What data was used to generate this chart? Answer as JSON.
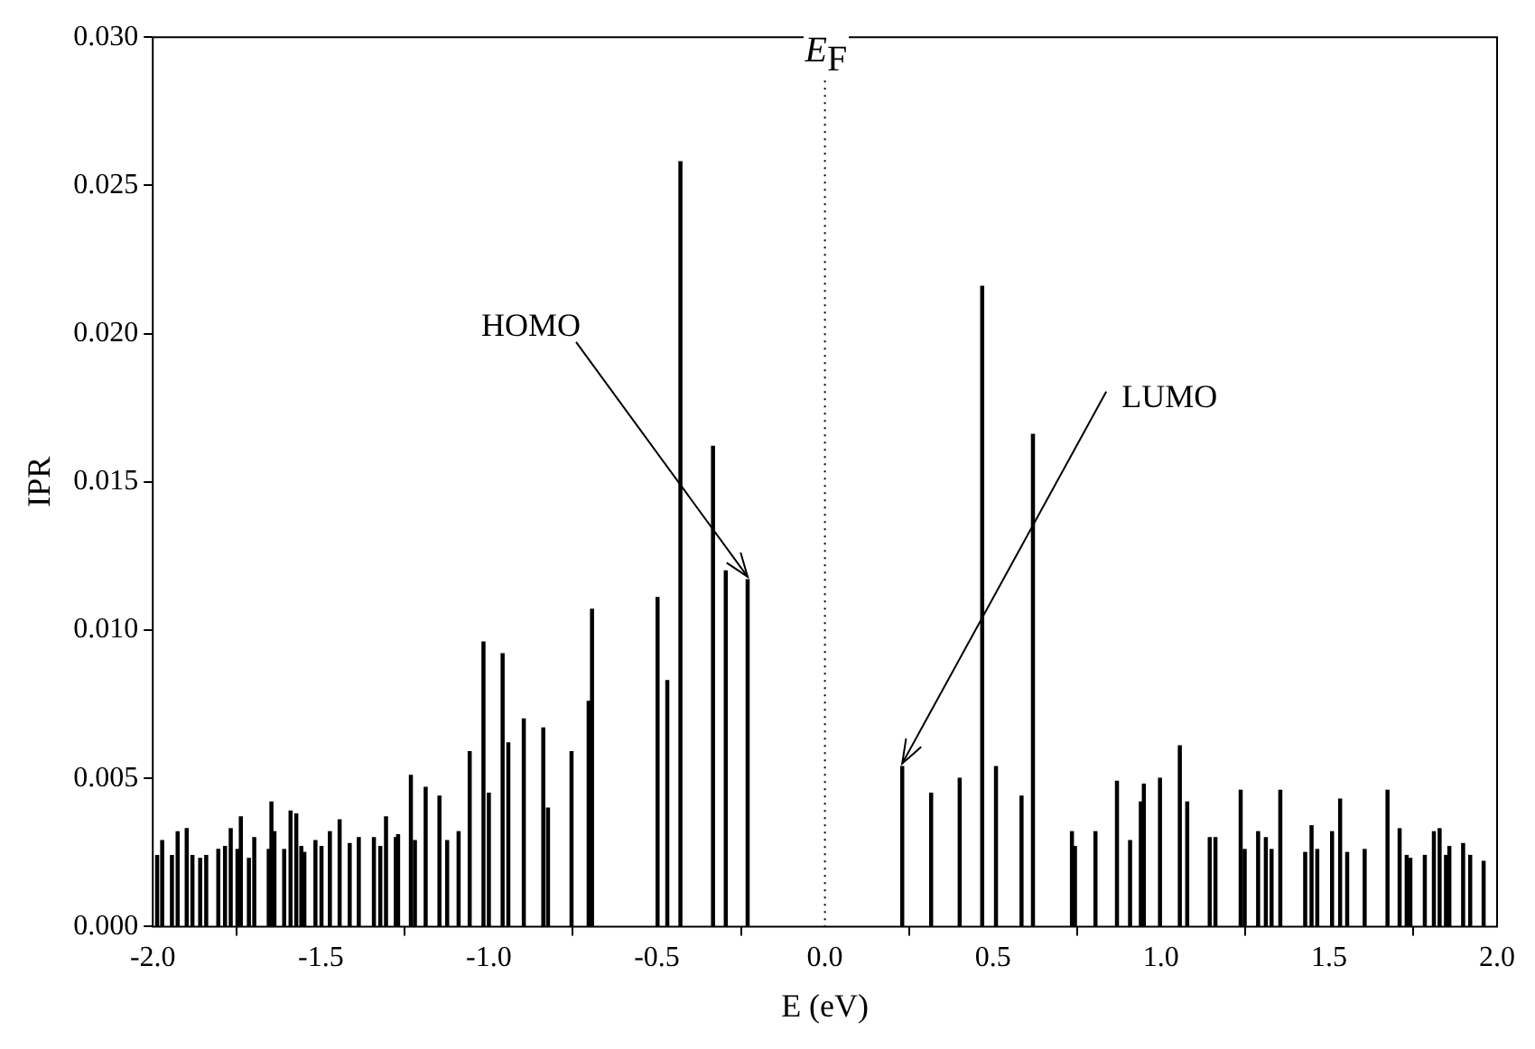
{
  "chart_data": {
    "type": "bar",
    "xlabel": "E (eV)",
    "ylabel": "IPR",
    "color": "#000000",
    "grid": false,
    "legend": false,
    "xlim": [
      -2,
      2
    ],
    "xticks": [
      {
        "value": -2,
        "label": "-2.0"
      },
      {
        "value": -1.5,
        "label": "-1.5"
      },
      {
        "value": -1,
        "label": "-1.0"
      },
      {
        "value": -0.5,
        "label": "-0.5"
      },
      {
        "value": 0,
        "label": "0.0"
      },
      {
        "value": 0.5,
        "label": "0.5"
      },
      {
        "value": 1,
        "label": "1.0"
      },
      {
        "value": 1.5,
        "label": "1.5"
      },
      {
        "value": 2,
        "label": "2.0"
      }
    ],
    "ylim": [
      0,
      0.03
    ],
    "yticks": [
      {
        "value": 0,
        "label": "0.000"
      },
      {
        "value": 0.005,
        "label": "0.005"
      },
      {
        "value": 0.01,
        "label": "0.010"
      },
      {
        "value": 0.015,
        "label": "0.015"
      },
      {
        "value": 0.02,
        "label": "0.020"
      },
      {
        "value": 0.025,
        "label": "0.025"
      },
      {
        "value": 0.03,
        "label": "0.030"
      }
    ],
    "x": [
      -1.987,
      -1.972,
      -1.943,
      -1.926,
      -1.899,
      -1.882,
      -1.859,
      -1.841,
      -1.805,
      -1.785,
      -1.768,
      -1.748,
      -1.738,
      -1.714,
      -1.698,
      -1.655,
      -1.647,
      -1.638,
      -1.609,
      -1.59,
      -1.573,
      -1.558,
      -1.549,
      -1.516,
      -1.498,
      -1.473,
      -1.444,
      -1.414,
      -1.387,
      -1.342,
      -1.323,
      -1.306,
      -1.277,
      -1.27,
      -1.232,
      -1.22,
      -1.188,
      -1.147,
      -1.124,
      -1.09,
      -1.057,
      -1.016,
      -1.0,
      -0.959,
      -0.942,
      -0.896,
      -0.838,
      -0.824,
      -0.754,
      -0.703,
      -0.693,
      -0.498,
      -0.469,
      -0.43,
      -0.333,
      -0.295,
      -0.23,
      0.23,
      0.316,
      0.401,
      0.468,
      0.509,
      0.585,
      0.619,
      0.735,
      0.744,
      0.805,
      0.869,
      0.908,
      0.94,
      0.949,
      0.997,
      1.056,
      1.078,
      1.145,
      1.162,
      1.237,
      1.249,
      1.289,
      1.312,
      1.329,
      1.355,
      1.429,
      1.448,
      1.465,
      1.509,
      1.533,
      1.554,
      1.606,
      1.674,
      1.71,
      1.731,
      1.742,
      1.785,
      1.812,
      1.829,
      1.848,
      1.858,
      1.899,
      1.92,
      1.96
    ],
    "values": [
      0.0024,
      0.0029,
      0.0024,
      0.0032,
      0.0033,
      0.0024,
      0.0023,
      0.0024,
      0.0026,
      0.0027,
      0.0033,
      0.0026,
      0.0037,
      0.0023,
      0.003,
      0.0026,
      0.0042,
      0.0032,
      0.0026,
      0.0039,
      0.0038,
      0.0027,
      0.0025,
      0.0029,
      0.0027,
      0.0032,
      0.0036,
      0.0028,
      0.003,
      0.003,
      0.0027,
      0.0037,
      0.003,
      0.0031,
      0.0051,
      0.0029,
      0.0047,
      0.0044,
      0.0029,
      0.0032,
      0.0059,
      0.0096,
      0.0045,
      0.0092,
      0.0062,
      0.007,
      0.0067,
      0.004,
      0.0059,
      0.0076,
      0.0107,
      0.0111,
      0.0083,
      0.0258,
      0.0162,
      0.012,
      0.0117,
      0.0054,
      0.0045,
      0.005,
      0.0216,
      0.0054,
      0.0044,
      0.0166,
      0.0032,
      0.0027,
      0.0032,
      0.0049,
      0.0029,
      0.0042,
      0.0048,
      0.005,
      0.0061,
      0.0042,
      0.003,
      0.003,
      0.0046,
      0.0026,
      0.0032,
      0.003,
      0.0026,
      0.0046,
      0.0025,
      0.0034,
      0.0026,
      0.0032,
      0.0043,
      0.0025,
      0.0026,
      0.0046,
      0.0033,
      0.0024,
      0.0023,
      0.0024,
      0.0032,
      0.0033,
      0.0024,
      0.0027,
      0.0028,
      0.0024,
      0.0022
    ],
    "ref_lines": [
      {
        "axis": "x",
        "value": 0,
        "label": "E$_{F}$",
        "line_style": "dotted",
        "color": "#000000"
      }
    ],
    "annotations": [
      {
        "text": "HOMO",
        "x": -0.23,
        "y": 0.0118
      },
      {
        "text": "LUMO",
        "x": 0.23,
        "y": 0.0055
      }
    ]
  }
}
